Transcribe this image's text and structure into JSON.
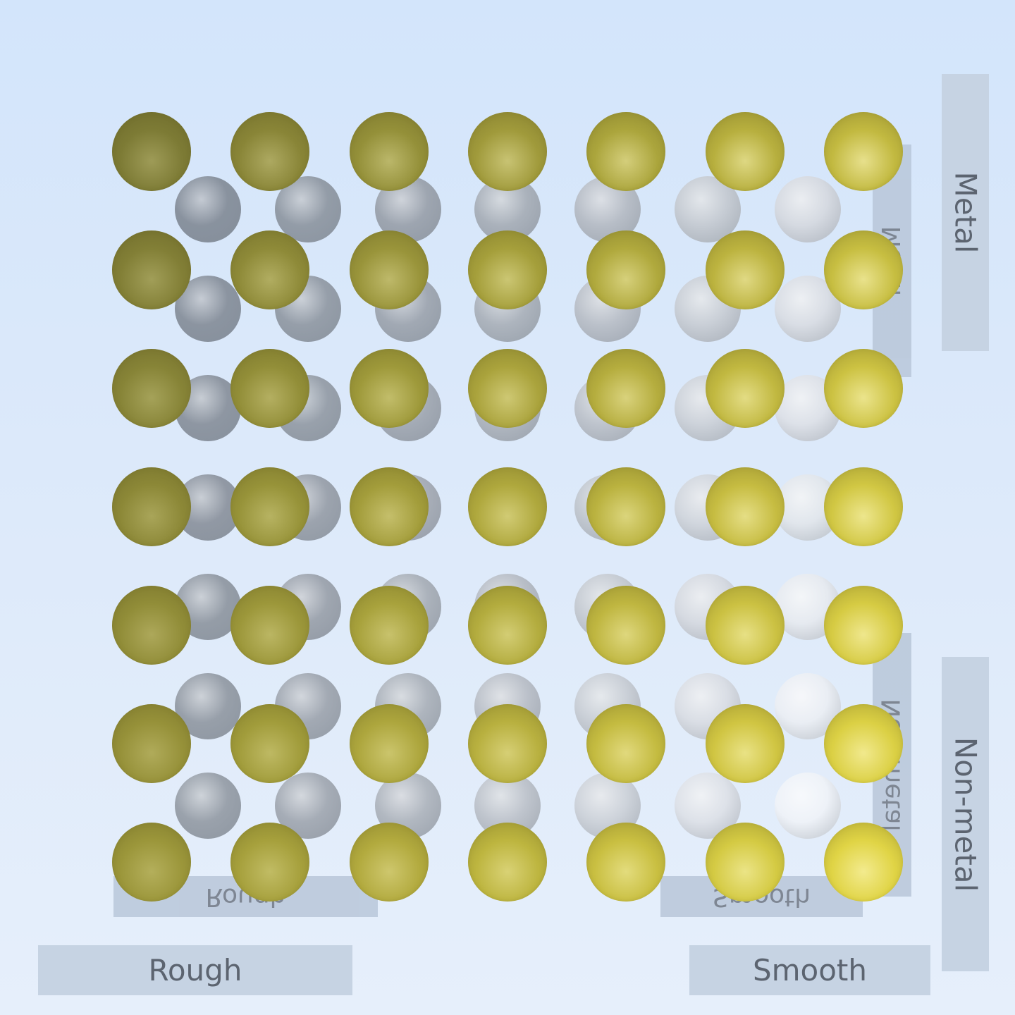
{
  "labels": {
    "rough": "Rough",
    "smooth": "Smooth",
    "metal": "Metal",
    "non_metal": "Non-metal"
  },
  "reflection_labels": {
    "rough": "Rough",
    "smooth": "Smooth",
    "metal": "Metal",
    "non_metal": "Non-metal"
  },
  "grid": {
    "rows": 7,
    "columns": 7,
    "gold_rough_color": "#7d7b35",
    "gold_smooth_color": "#e0d445",
    "silver_rough_color": "#6f7680",
    "silver_smooth_color": "#eef2f8"
  }
}
